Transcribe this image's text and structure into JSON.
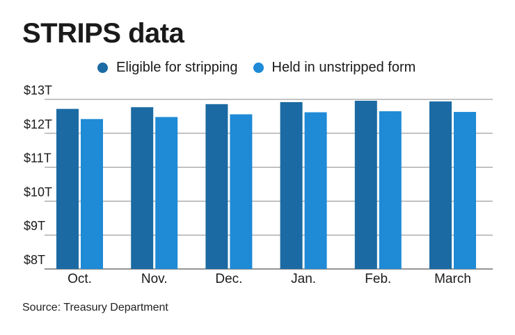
{
  "chart_data": {
    "type": "bar",
    "title": "STRIPS data",
    "categories": [
      "Oct.",
      "Nov.",
      "Dec.",
      "Jan.",
      "Feb.",
      "March"
    ],
    "series": [
      {
        "name": "Eligible for stripping",
        "color": "#1b6aa3",
        "values": [
          12.72,
          12.77,
          12.86,
          12.92,
          12.96,
          12.94
        ]
      },
      {
        "name": "Held in unstripped form",
        "color": "#1f8ad6",
        "values": [
          12.42,
          12.48,
          12.56,
          12.62,
          12.65,
          12.63
        ]
      }
    ],
    "yticks": [
      {
        "value": 8,
        "label": "$8T"
      },
      {
        "value": 9,
        "label": "$9T"
      },
      {
        "value": 10,
        "label": "$10T"
      },
      {
        "value": 11,
        "label": "$11T"
      },
      {
        "value": 12,
        "label": "$12T"
      },
      {
        "value": 13,
        "label": "$13T"
      }
    ],
    "ylim": [
      8,
      13
    ],
    "grid": true,
    "legend_position": "top",
    "source": "Source: Treasury Department"
  }
}
